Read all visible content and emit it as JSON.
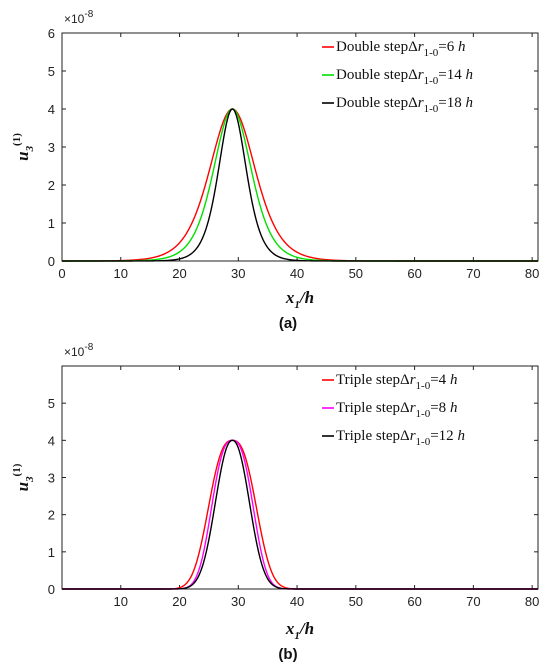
{
  "chart_data": [
    {
      "type": "line",
      "panel_label": "(a)",
      "scale_factor": "×10",
      "scale_exponent": "-8",
      "xlabel": {
        "main": "x",
        "sub": "1",
        "tail": "/h"
      },
      "ylabel": {
        "main": "u",
        "sub": "3",
        "sup": "(1)"
      },
      "xlim": [
        0,
        81
      ],
      "ylim": [
        0,
        6
      ],
      "xticks": [
        0,
        10,
        20,
        30,
        40,
        50,
        60,
        70,
        80
      ],
      "yticks": [
        0,
        1,
        2,
        3,
        4,
        5,
        6
      ],
      "legend_position": "top-right",
      "series": [
        {
          "name": {
            "prefix": "Double step",
            "delta": "Δ",
            "r": "r",
            "sub": "1-0",
            "value": "=6 ",
            "unit": "h"
          },
          "color": "#ff0000",
          "peak": 4,
          "center": 29,
          "width": 11.5,
          "shape": "sech2"
        },
        {
          "name": {
            "prefix": "Double step",
            "delta": "Δ",
            "r": "r",
            "sub": "1-0",
            "value": "=14 ",
            "unit": "h"
          },
          "color": "#00e000",
          "peak": 4,
          "center": 29,
          "width": 9.5,
          "shape": "sech2"
        },
        {
          "name": {
            "prefix": "Double step",
            "delta": "Δ",
            "r": "r",
            "sub": "1-0",
            "value": "=18 ",
            "unit": "h"
          },
          "color": "#000000",
          "peak": 4,
          "center": 29,
          "width": 7.0,
          "shape": "sech2"
        }
      ]
    },
    {
      "type": "line",
      "panel_label": "(b)",
      "scale_factor": "×10",
      "scale_exponent": "-8",
      "xlabel": {
        "main": "x",
        "sub": "1",
        "tail": "/h"
      },
      "ylabel": {
        "main": "u",
        "sub": "3",
        "sup": "(1)"
      },
      "xlim": [
        0,
        81
      ],
      "ylim": [
        0,
        6
      ],
      "xticks": [
        10,
        20,
        30,
        40,
        50,
        60,
        70,
        80
      ],
      "yticks": [
        0,
        1,
        2,
        3,
        4,
        5
      ],
      "legend_position": "top-right",
      "series": [
        {
          "name": {
            "prefix": "Triple step",
            "delta": "Δ",
            "r": "r",
            "sub": "1-0",
            "value": "=4 ",
            "unit": "h"
          },
          "color": "#ff0000",
          "peak": 4,
          "center": 29,
          "width": 6.2,
          "shape": "gauss4"
        },
        {
          "name": {
            "prefix": "Triple step",
            "delta": "Δ",
            "r": "r",
            "sub": "1-0",
            "value": "=8 ",
            "unit": "h"
          },
          "color": "#ff00ff",
          "peak": 4,
          "center": 29,
          "width": 5.4,
          "shape": "gauss4"
        },
        {
          "name": {
            "prefix": "Triple step",
            "delta": "Δ",
            "r": "r",
            "sub": "1-0",
            "value": "=12 ",
            "unit": "h"
          },
          "color": "#000000",
          "peak": 4,
          "center": 29,
          "width": 4.6,
          "shape": "gauss3"
        }
      ]
    }
  ]
}
